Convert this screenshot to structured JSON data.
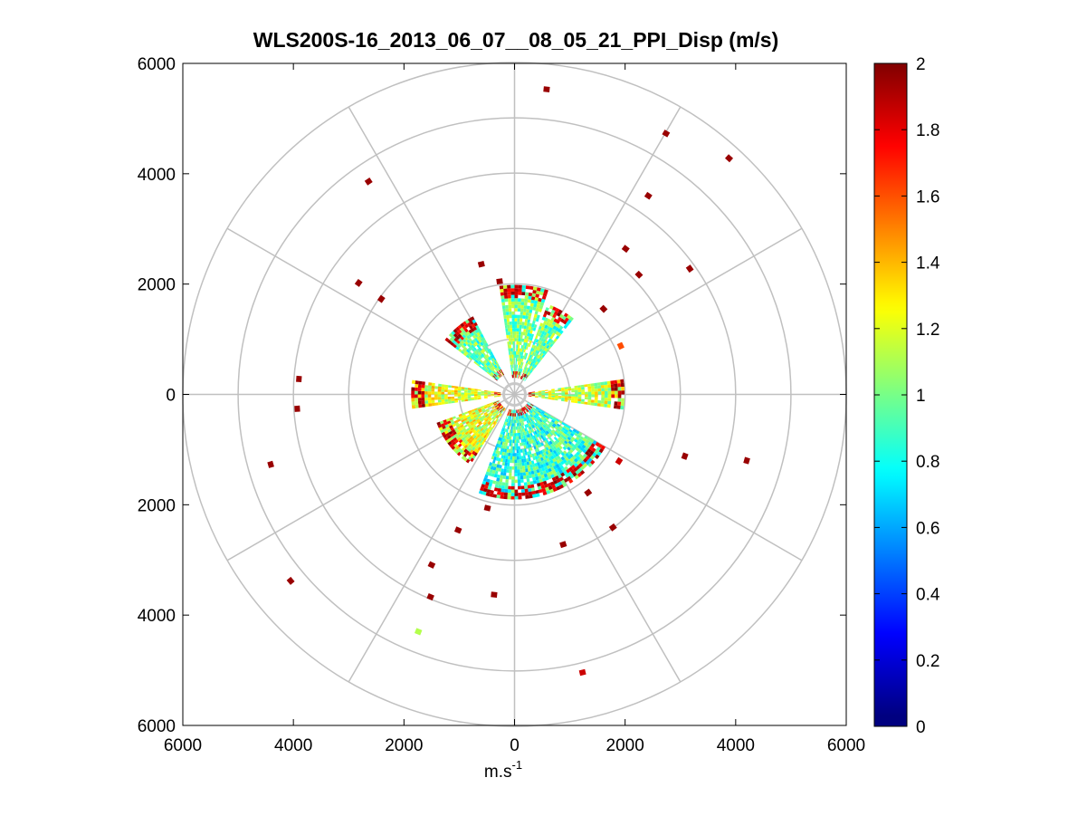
{
  "chart_data": {
    "type": "polar-scatter",
    "title": "WLS200S-16_2013_06_07__08_05_21_PPI_Disp (m/s)",
    "xlabel": "m.s",
    "xlabel_superscript": "-1",
    "ylabel": "",
    "xlim": [
      -6000,
      6000
    ],
    "ylim": [
      -6000,
      6000
    ],
    "x_tick_labels": [
      "6000",
      "4000",
      "2000",
      "0",
      "2000",
      "4000",
      "6000"
    ],
    "y_tick_labels": [
      "6000",
      "4000",
      "2000",
      "0",
      "2000",
      "4000",
      "6000"
    ],
    "x_ticks": [
      -6000,
      -4000,
      -2000,
      0,
      2000,
      4000,
      6000
    ],
    "y_ticks": [
      6000,
      4000,
      2000,
      0,
      -2000,
      -4000,
      -6000
    ],
    "polar_grid": {
      "range_rings": [
        1000,
        2000,
        3000,
        4000,
        5000,
        6000
      ],
      "spoke_angles_deg": [
        0,
        30,
        60,
        90,
        120,
        150,
        180,
        210,
        240,
        270,
        300,
        330
      ],
      "ring_color": "#c0c0c0"
    },
    "colorbar": {
      "colormap": "jet",
      "range": [
        0,
        2
      ],
      "tick_labels": [
        "2",
        "1.8",
        "1.6",
        "1.4",
        "1.2",
        "1",
        "0.8",
        "0.6",
        "0.4",
        "0.2",
        "0"
      ],
      "ticks": [
        2,
        1.8,
        1.6,
        1.4,
        1.2,
        1,
        0.8,
        0.6,
        0.4,
        0.2,
        0
      ],
      "colors": [
        "#00008f",
        "#0000ff",
        "#0080ff",
        "#00ffff",
        "#80ff80",
        "#ffff00",
        "#ff8000",
        "#ff0000",
        "#800000"
      ]
    },
    "dense_sectors": [
      {
        "az_start": 308,
        "az_end": 332,
        "r_min": 400,
        "r_max": 1550,
        "mean_value": 0.95
      },
      {
        "az_start": 352,
        "az_end": 18,
        "r_min": 300,
        "r_max": 1950,
        "mean_value": 1.0
      },
      {
        "az_start": 20,
        "az_end": 38,
        "r_min": 300,
        "r_max": 1700,
        "mean_value": 0.95
      },
      {
        "az_start": 82,
        "az_end": 98,
        "r_min": 250,
        "r_max": 1950,
        "mean_value": 1.15
      },
      {
        "az_start": 120,
        "az_end": 200,
        "r_min": 280,
        "r_max": 1900,
        "mean_value": 0.85
      },
      {
        "az_start": 262,
        "az_end": 278,
        "r_min": 250,
        "r_max": 1850,
        "mean_value": 1.2
      },
      {
        "az_start": 212,
        "az_end": 250,
        "r_min": 300,
        "r_max": 1500,
        "mean_value": 1.2
      }
    ],
    "points": [
      {
        "x": 580,
        "y": 5530,
        "value": 1.95
      },
      {
        "x": 2740,
        "y": 4730,
        "value": 1.95
      },
      {
        "x": 3880,
        "y": 4280,
        "value": 1.95
      },
      {
        "x": -2640,
        "y": 3860,
        "value": 1.95
      },
      {
        "x": 2420,
        "y": 3600,
        "value": 1.95
      },
      {
        "x": 2010,
        "y": 2640,
        "value": 1.95
      },
      {
        "x": 3170,
        "y": 2280,
        "value": 1.95
      },
      {
        "x": 2250,
        "y": 2170,
        "value": 1.95
      },
      {
        "x": -600,
        "y": 2360,
        "value": 1.95
      },
      {
        "x": -2820,
        "y": 2020,
        "value": 1.95
      },
      {
        "x": -2410,
        "y": 1730,
        "value": 1.95
      },
      {
        "x": -270,
        "y": 2050,
        "value": 1.95
      },
      {
        "x": 1610,
        "y": 1550,
        "value": 1.95
      },
      {
        "x": 1920,
        "y": 880,
        "value": 1.6
      },
      {
        "x": -3900,
        "y": 280,
        "value": 1.95
      },
      {
        "x": -3930,
        "y": -260,
        "value": 1.95
      },
      {
        "x": 3080,
        "y": -1120,
        "value": 1.95
      },
      {
        "x": 4200,
        "y": -1200,
        "value": 1.95
      },
      {
        "x": -4410,
        "y": -1270,
        "value": 1.95
      },
      {
        "x": 1890,
        "y": -1210,
        "value": 1.85
      },
      {
        "x": 1330,
        "y": -1780,
        "value": 1.95
      },
      {
        "x": 1780,
        "y": -2410,
        "value": 1.95
      },
      {
        "x": 880,
        "y": -2720,
        "value": 1.95
      },
      {
        "x": -490,
        "y": -2060,
        "value": 1.95
      },
      {
        "x": -1020,
        "y": -2460,
        "value": 1.95
      },
      {
        "x": -1500,
        "y": -3090,
        "value": 1.95
      },
      {
        "x": -4050,
        "y": -3380,
        "value": 1.95
      },
      {
        "x": -370,
        "y": -3630,
        "value": 1.95
      },
      {
        "x": -1520,
        "y": -3670,
        "value": 1.95
      },
      {
        "x": -1740,
        "y": -4300,
        "value": 1.1
      },
      {
        "x": 1230,
        "y": -5040,
        "value": 1.85
      }
    ]
  }
}
